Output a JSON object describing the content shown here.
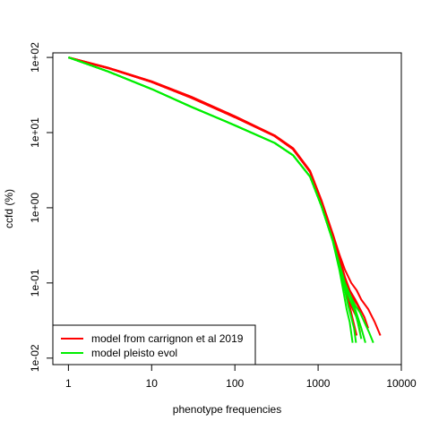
{
  "chart_data": {
    "type": "line",
    "title": "",
    "xlabel": "phenotype frequencies",
    "ylabel": "ccfd (%)",
    "x_scale": "log",
    "y_scale": "log",
    "xlim": [
      0.65,
      10000
    ],
    "ylim": [
      0.0082,
      115
    ],
    "x_ticks": [
      1,
      10,
      100,
      1000,
      10000
    ],
    "x_tick_labels": [
      "1",
      "10",
      "100",
      "1000",
      "10000"
    ],
    "y_ticks": [
      0.01,
      0.1,
      1,
      10,
      100
    ],
    "y_tick_labels": [
      "1e-02",
      "1e-01",
      "1e+00",
      "1e+01",
      "1e+02"
    ],
    "grid": false,
    "legend_position": "bottom-left",
    "legend": [
      {
        "label": "model from carrignon et al 2019",
        "color": "#ff0000"
      },
      {
        "label": "model pleisto evol",
        "color": "#00ee00"
      }
    ],
    "series_groups": [
      {
        "name": "model from carrignon et al 2019",
        "color": "#ff0000",
        "runs": [
          {
            "x": [
              1,
              3,
              10,
              30,
              100,
              300,
              500,
              800,
              1100,
              1500,
              1800,
              2000,
              2300,
              2600,
              2900,
              3200
            ],
            "y": [
              100,
              72,
              47,
              29,
              16,
              9,
              6,
              3,
              1.2,
              0.42,
              0.2,
              0.11,
              0.065,
              0.045,
              0.035,
              0.022
            ]
          },
          {
            "x": [
              1,
              3,
              10,
              30,
              100,
              300,
              500,
              800,
              1100,
              1500,
              1800,
              2100,
              2400,
              2700,
              3000,
              3300
            ],
            "y": [
              100,
              73,
              48,
              30,
              16.5,
              9.2,
              6.2,
              3.1,
              1.25,
              0.44,
              0.22,
              0.12,
              0.08,
              0.06,
              0.05,
              0.04
            ]
          },
          {
            "x": [
              1,
              3,
              10,
              30,
              100,
              300,
              500,
              800,
              1100,
              1500,
              1800,
              2100,
              2500,
              2900,
              3300,
              4000,
              4800,
              5600
            ],
            "y": [
              100,
              73,
              48,
              30,
              16.5,
              9.2,
              6.2,
              3.1,
              1.25,
              0.45,
              0.24,
              0.15,
              0.1,
              0.08,
              0.06,
              0.045,
              0.03,
              0.02
            ]
          },
          {
            "x": [
              1,
              3,
              10,
              30,
              100,
              300,
              500,
              800,
              1100,
              1500,
              1800,
              2100,
              2400,
              2800,
              3200,
              3600,
              4000
            ],
            "y": [
              100,
              72,
              47,
              29,
              16,
              9,
              6,
              3,
              1.2,
              0.43,
              0.21,
              0.11,
              0.08,
              0.06,
              0.045,
              0.035,
              0.025
            ]
          },
          {
            "x": [
              1,
              3,
              10,
              30,
              100,
              300,
              500,
              800,
              1100,
              1500,
              1800,
              2000,
              2300,
              2500,
              2700,
              2900
            ],
            "y": [
              100,
              72,
              47,
              29,
              16,
              9,
              6,
              3,
              1.2,
              0.42,
              0.19,
              0.1,
              0.06,
              0.04,
              0.028,
              0.02
            ]
          }
        ]
      },
      {
        "name": "model pleisto evol",
        "color": "#00ee00",
        "runs": [
          {
            "x": [
              1,
              3,
              10,
              30,
              100,
              300,
              500,
              800,
              1100,
              1500,
              1800,
              2100,
              2300,
              2500,
              2700,
              2850
            ],
            "y": [
              100,
              65,
              38,
              22,
              12.5,
              7.3,
              5,
              2.6,
              1.05,
              0.36,
              0.16,
              0.08,
              0.05,
              0.035,
              0.025,
              0.016
            ]
          },
          {
            "x": [
              1,
              3,
              10,
              30,
              100,
              300,
              500,
              800,
              1100,
              1500,
              1800,
              2100,
              2400,
              2700,
              3000,
              3300
            ],
            "y": [
              100,
              65,
              38,
              22,
              12.5,
              7.3,
              5,
              2.6,
              1.05,
              0.37,
              0.17,
              0.09,
              0.06,
              0.045,
              0.03,
              0.018
            ]
          },
          {
            "x": [
              1,
              3,
              10,
              30,
              100,
              300,
              500,
              800,
              1100,
              1500,
              1800,
              2100,
              2400,
              2700,
              3000,
              3300,
              3700
            ],
            "y": [
              100,
              65,
              38,
              22,
              12.5,
              7.3,
              5,
              2.6,
              1.05,
              0.37,
              0.17,
              0.09,
              0.07,
              0.05,
              0.035,
              0.025,
              0.016
            ]
          },
          {
            "x": [
              1,
              3,
              10,
              30,
              100,
              300,
              500,
              800,
              1100,
              1500,
              1800,
              2100,
              2400,
              2800,
              3200,
              3600,
              4100,
              4600
            ],
            "y": [
              100,
              65,
              38,
              22,
              12.5,
              7.3,
              5,
              2.6,
              1.05,
              0.37,
              0.18,
              0.1,
              0.07,
              0.05,
              0.04,
              0.03,
              0.022,
              0.016
            ]
          },
          {
            "x": [
              1,
              3,
              10,
              30,
              100,
              300,
              500,
              800,
              1100,
              1500,
              1800,
              2000,
              2200,
              2400,
              2600
            ],
            "y": [
              100,
              65,
              38,
              22,
              12.5,
              7.3,
              5,
              2.6,
              1.05,
              0.36,
              0.15,
              0.08,
              0.045,
              0.03,
              0.016
            ]
          }
        ]
      }
    ]
  }
}
